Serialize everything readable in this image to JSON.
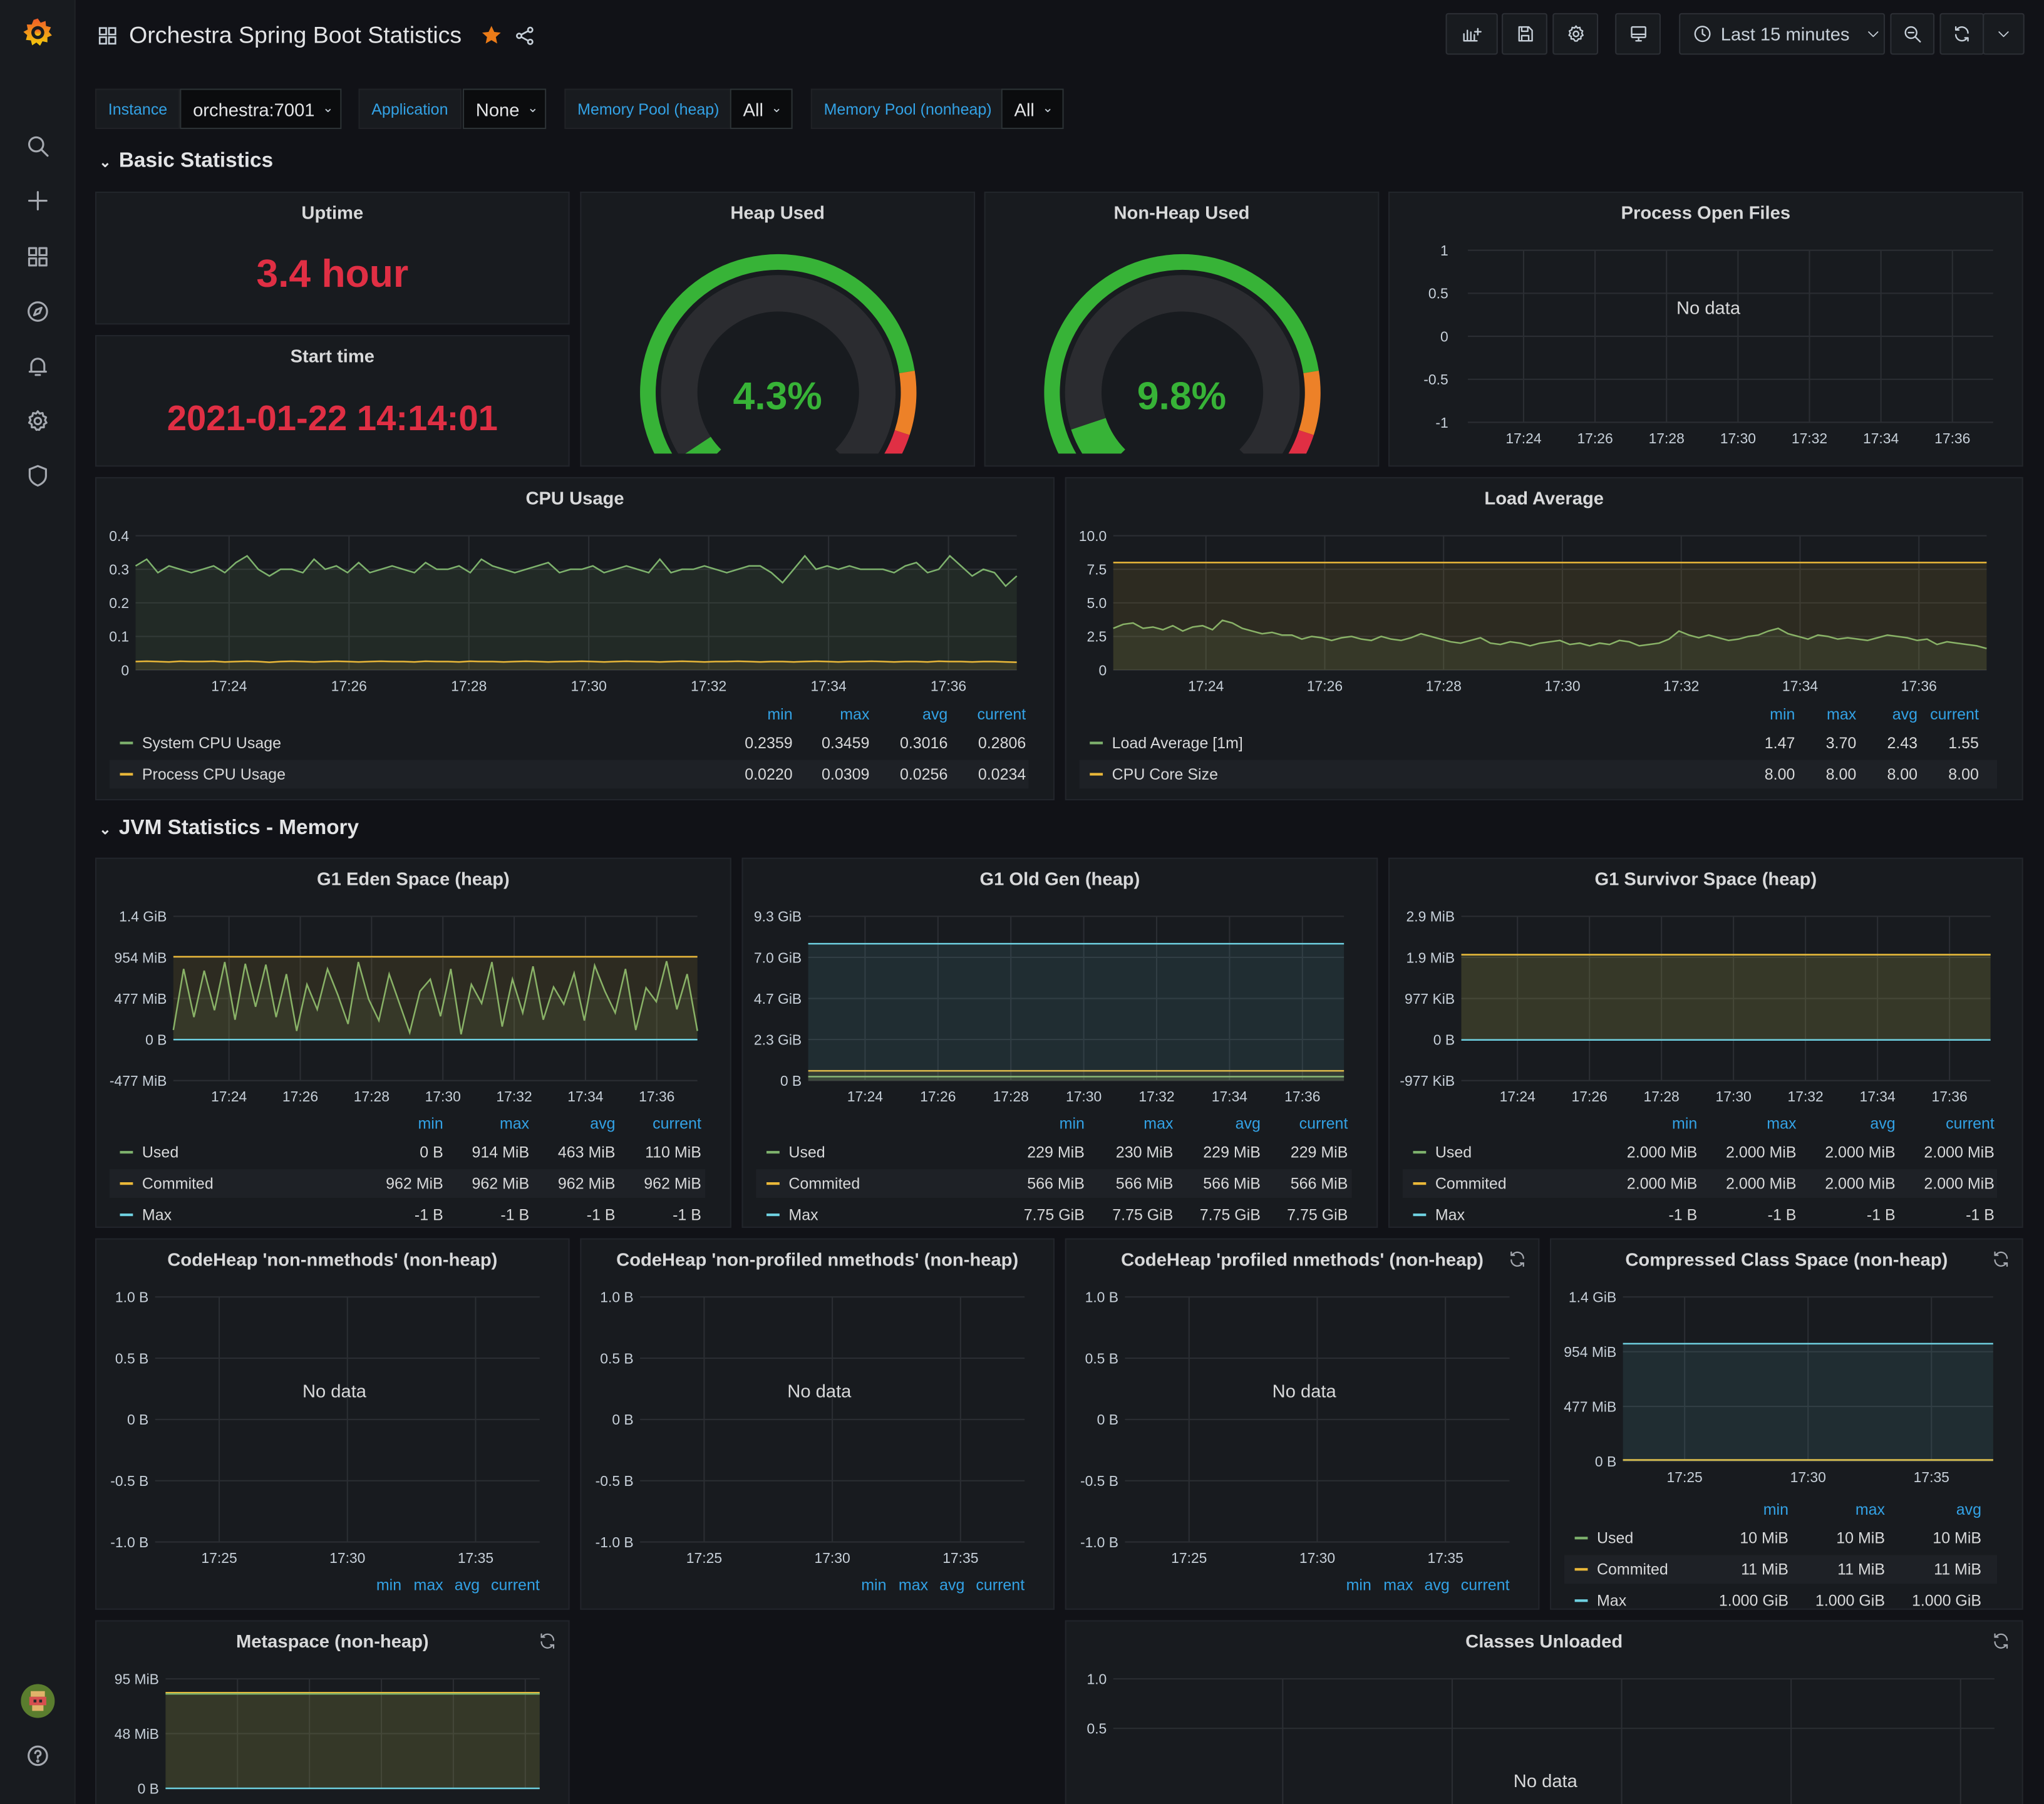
{
  "dashboard": {
    "title": "Orchestra Spring Boot Statistics",
    "time_range_label": "Last 15 minutes"
  },
  "variables": [
    {
      "label": "Instance",
      "value": "orchestra:7001"
    },
    {
      "label": "Application",
      "value": "None"
    },
    {
      "label": "Memory Pool (heap)",
      "value": "All"
    },
    {
      "label": "Memory Pool (nonheap)",
      "value": "All"
    }
  ],
  "rows": {
    "basic": "Basic Statistics",
    "jvm_memory": "JVM Statistics - Memory"
  },
  "panels": {
    "uptime": {
      "title": "Uptime",
      "value": "3.4 hour"
    },
    "start_time": {
      "title": "Start time",
      "value": "2021-01-22 14:14:01"
    },
    "heap_used": {
      "title": "Heap Used",
      "value": "4.3%",
      "fraction": 0.043
    },
    "nonheap_used": {
      "title": "Non-Heap Used",
      "value": "9.8%",
      "fraction": 0.098
    },
    "open_files": {
      "title": "Process Open Files",
      "nodata": "No data"
    },
    "cpu": {
      "title": "CPU Usage"
    },
    "load": {
      "title": "Load Average"
    },
    "eden": {
      "title": "G1 Eden Space (heap)"
    },
    "oldgen": {
      "title": "G1 Old Gen (heap)"
    },
    "survivor": {
      "title": "G1 Survivor Space (heap)"
    },
    "ch_nonnm": {
      "title": "CodeHeap 'non-nmethods' (non-heap)",
      "nodata": "No data"
    },
    "ch_nonprof": {
      "title": "CodeHeap 'non-profiled nmethods' (non-heap)",
      "nodata": "No data"
    },
    "ch_prof": {
      "title": "CodeHeap 'profiled nmethods' (non-heap)",
      "nodata": "No data"
    },
    "ccs": {
      "title": "Compressed Class Space (non-heap)"
    },
    "metaspace": {
      "title": "Metaspace (non-heap)"
    },
    "classes_unloaded": {
      "title": "Classes Unloaded",
      "nodata": "No data"
    }
  },
  "legend_headers": {
    "min": "min",
    "max": "max",
    "avg": "avg",
    "current": "current"
  },
  "legends": {
    "cpu": [
      {
        "name": "System CPU Usage",
        "min": "0.2359",
        "max": "0.3459",
        "avg": "0.3016",
        "current": "0.2806"
      },
      {
        "name": "Process CPU Usage",
        "min": "0.0220",
        "max": "0.0309",
        "avg": "0.0256",
        "current": "0.0234"
      }
    ],
    "load": [
      {
        "name": "Load Average [1m]",
        "min": "1.47",
        "max": "3.70",
        "avg": "2.43",
        "current": "1.55"
      },
      {
        "name": "CPU Core Size",
        "min": "8.00",
        "max": "8.00",
        "avg": "8.00",
        "current": "8.00"
      }
    ],
    "eden": [
      {
        "name": "Used",
        "min": "0 B",
        "max": "914 MiB",
        "avg": "463 MiB",
        "current": "110 MiB"
      },
      {
        "name": "Commited",
        "min": "962 MiB",
        "max": "962 MiB",
        "avg": "962 MiB",
        "current": "962 MiB"
      },
      {
        "name": "Max",
        "min": "-1 B",
        "max": "-1 B",
        "avg": "-1 B",
        "current": "-1 B"
      }
    ],
    "oldgen": [
      {
        "name": "Used",
        "min": "229 MiB",
        "max": "230 MiB",
        "avg": "229 MiB",
        "current": "229 MiB"
      },
      {
        "name": "Commited",
        "min": "566 MiB",
        "max": "566 MiB",
        "avg": "566 MiB",
        "current": "566 MiB"
      },
      {
        "name": "Max",
        "min": "7.75 GiB",
        "max": "7.75 GiB",
        "avg": "7.75 GiB",
        "current": "7.75 GiB"
      }
    ],
    "survivor": [
      {
        "name": "Used",
        "min": "2.000 MiB",
        "max": "2.000 MiB",
        "avg": "2.000 MiB",
        "current": "2.000 MiB"
      },
      {
        "name": "Commited",
        "min": "2.000 MiB",
        "max": "2.000 MiB",
        "avg": "2.000 MiB",
        "current": "2.000 MiB"
      },
      {
        "name": "Max",
        "min": "-1 B",
        "max": "-1 B",
        "avg": "-1 B",
        "current": "-1 B"
      }
    ],
    "ccs": [
      {
        "name": "Used",
        "min": "10 MiB",
        "max": "10 MiB",
        "avg": "10 MiB"
      },
      {
        "name": "Commited",
        "min": "11 MiB",
        "max": "11 MiB",
        "avg": "11 MiB"
      },
      {
        "name": "Max",
        "min": "1.000 GiB",
        "max": "1.000 GiB",
        "avg": "1.000 GiB"
      }
    ]
  },
  "chart_data": [
    {
      "panel": "open_files",
      "type": "line",
      "title": "Process Open Files",
      "yticks": [
        "1",
        "0.5",
        "0",
        "-0.5",
        "-1"
      ],
      "xticks": [
        "17:24",
        "17:26",
        "17:28",
        "17:30",
        "17:32",
        "17:34",
        "17:36"
      ],
      "ylim": [
        -1,
        1
      ],
      "series": []
    },
    {
      "panel": "cpu",
      "type": "area",
      "title": "CPU Usage",
      "yticks": [
        "0.4",
        "0.3",
        "0.2",
        "0.1",
        "0"
      ],
      "ylim": [
        0,
        0.4
      ],
      "xticks": [
        "17:24",
        "17:26",
        "17:28",
        "17:30",
        "17:32",
        "17:34",
        "17:36"
      ],
      "series": [
        {
          "name": "System CPU Usage",
          "color": "#7eb26d",
          "values": [
            0.31,
            0.33,
            0.29,
            0.31,
            0.3,
            0.29,
            0.3,
            0.31,
            0.29,
            0.32,
            0.34,
            0.3,
            0.28,
            0.3,
            0.3,
            0.29,
            0.33,
            0.3,
            0.31,
            0.29,
            0.32,
            0.29,
            0.3,
            0.31,
            0.3,
            0.29,
            0.32,
            0.3,
            0.3,
            0.31,
            0.29,
            0.33,
            0.31,
            0.3,
            0.29,
            0.3,
            0.31,
            0.32,
            0.29,
            0.3,
            0.3,
            0.31,
            0.29,
            0.3,
            0.31,
            0.3,
            0.29,
            0.33,
            0.29,
            0.3,
            0.3,
            0.31,
            0.3,
            0.29,
            0.3,
            0.31,
            0.31,
            0.29,
            0.26,
            0.3,
            0.34,
            0.3,
            0.31,
            0.3,
            0.31,
            0.3,
            0.3,
            0.3,
            0.29,
            0.31,
            0.32,
            0.29,
            0.3,
            0.34,
            0.31,
            0.28,
            0.3,
            0.29,
            0.25,
            0.28
          ]
        },
        {
          "name": "Process CPU Usage",
          "color": "#eab839",
          "values": [
            0.025,
            0.026,
            0.025,
            0.024,
            0.026,
            0.025,
            0.025,
            0.026,
            0.024,
            0.025,
            0.026,
            0.025,
            0.023,
            0.025,
            0.026,
            0.025,
            0.024,
            0.025,
            0.026,
            0.025,
            0.024,
            0.025,
            0.026,
            0.025,
            0.025,
            0.024,
            0.026,
            0.025,
            0.025,
            0.024,
            0.026,
            0.025,
            0.025,
            0.024,
            0.025,
            0.026,
            0.025,
            0.024,
            0.025,
            0.025,
            0.026,
            0.025,
            0.024,
            0.025,
            0.026,
            0.025,
            0.025,
            0.024,
            0.025,
            0.026,
            0.025,
            0.024,
            0.025,
            0.025,
            0.026,
            0.025,
            0.024,
            0.025,
            0.025,
            0.024,
            0.025,
            0.026,
            0.025,
            0.024,
            0.025,
            0.025,
            0.026,
            0.025,
            0.024,
            0.025,
            0.025,
            0.024,
            0.026,
            0.025,
            0.025,
            0.024,
            0.025,
            0.025,
            0.024,
            0.023
          ]
        }
      ]
    },
    {
      "panel": "load",
      "type": "area",
      "title": "Load Average",
      "yticks": [
        "10.0",
        "7.5",
        "5.0",
        "2.5",
        "0"
      ],
      "ylim": [
        0,
        10
      ],
      "xticks": [
        "17:24",
        "17:26",
        "17:28",
        "17:30",
        "17:32",
        "17:34",
        "17:36"
      ],
      "series": [
        {
          "name": "Load Average [1m]",
          "color": "#7eb26d",
          "values": [
            3.1,
            3.4,
            3.5,
            3.1,
            3.2,
            3.0,
            3.3,
            2.9,
            3.2,
            3.3,
            3.0,
            3.7,
            3.5,
            3.1,
            2.9,
            2.7,
            2.8,
            2.6,
            2.6,
            2.3,
            2.5,
            2.4,
            2.2,
            2.4,
            2.5,
            2.3,
            2.2,
            2.5,
            2.3,
            2.2,
            2.4,
            2.7,
            2.5,
            2.3,
            2.1,
            2.0,
            2.2,
            2.4,
            2.0,
            1.9,
            2.1,
            2.0,
            1.8,
            2.0,
            2.1,
            2.2,
            1.9,
            2.0,
            1.8,
            2.0,
            1.9,
            2.2,
            2.1,
            1.8,
            1.9,
            2.0,
            2.3,
            2.9,
            2.6,
            2.4,
            2.6,
            2.4,
            2.2,
            2.3,
            2.5,
            2.6,
            2.9,
            3.1,
            2.7,
            2.5,
            2.3,
            2.6,
            2.5,
            2.3,
            2.4,
            2.3,
            2.2,
            2.4,
            2.6,
            2.5,
            2.4,
            2.2,
            2.3,
            1.9,
            2.1,
            2.0,
            1.9,
            1.8,
            1.6
          ]
        },
        {
          "name": "CPU Core Size",
          "color": "#eab839",
          "values": [
            8,
            8
          ]
        }
      ]
    },
    {
      "panel": "eden",
      "type": "area",
      "title": "G1 Eden Space (heap)",
      "yticks": [
        "1.4 GiB",
        "954 MiB",
        "477 MiB",
        "0 B",
        "-477 MiB"
      ],
      "ylim": [
        -477,
        1431
      ],
      "xticks": [
        "17:24",
        "17:26",
        "17:28",
        "17:30",
        "17:32",
        "17:34",
        "17:36"
      ],
      "series": [
        {
          "name": "Used",
          "color": "#7eb26d",
          "values": [
            110,
            820,
            260,
            800,
            340,
            900,
            230,
            880,
            380,
            870,
            260,
            760,
            100,
            640,
            350,
            820,
            520,
            180,
            900,
            470,
            220,
            760,
            420,
            80,
            560,
            700,
            270,
            820,
            60,
            640,
            420,
            900,
            150,
            700,
            310,
            850,
            230,
            610,
            410,
            770,
            220,
            860,
            560,
            310,
            820,
            110,
            600,
            440,
            910,
            350,
            760,
            100
          ]
        },
        {
          "name": "Commited",
          "color": "#eab839",
          "values": [
            962,
            962
          ]
        },
        {
          "name": "Max",
          "color": "#6ed0e0",
          "values": [
            -1,
            -1
          ]
        }
      ]
    },
    {
      "panel": "oldgen",
      "type": "area",
      "title": "G1 Old Gen (heap)",
      "yticks": [
        "9.3 GiB",
        "7.0 GiB",
        "4.7 GiB",
        "2.3 GiB",
        "0 B"
      ],
      "ylim": [
        0,
        9.3
      ],
      "xticks": [
        "17:24",
        "17:26",
        "17:28",
        "17:30",
        "17:32",
        "17:34",
        "17:36"
      ],
      "series": [
        {
          "name": "Used",
          "color": "#7eb26d",
          "values": [
            0.224,
            0.224
          ]
        },
        {
          "name": "Commited",
          "color": "#eab839",
          "values": [
            0.553,
            0.553
          ]
        },
        {
          "name": "Max",
          "color": "#6ed0e0",
          "values": [
            7.75,
            7.75
          ]
        }
      ]
    },
    {
      "panel": "survivor",
      "type": "area",
      "title": "G1 Survivor Space (heap)",
      "yticks": [
        "2.9 MiB",
        "1.9 MiB",
        "977 KiB",
        "0 B",
        "-977 KiB"
      ],
      "ylim": [
        -0.954,
        2.9
      ],
      "xticks": [
        "17:24",
        "17:26",
        "17:28",
        "17:30",
        "17:32",
        "17:34",
        "17:36"
      ],
      "series": [
        {
          "name": "Used",
          "color": "#7eb26d",
          "values": [
            2,
            2
          ]
        },
        {
          "name": "Commited",
          "color": "#eab839",
          "values": [
            2,
            2
          ]
        },
        {
          "name": "Max",
          "color": "#6ed0e0",
          "values": [
            0,
            0
          ]
        }
      ]
    },
    {
      "panel": "ch_nonnm",
      "type": "line",
      "yticks": [
        "1.0 B",
        "0.5 B",
        "0 B",
        "-0.5 B",
        "-1.0 B"
      ],
      "ylim": [
        -1,
        1
      ],
      "xticks": [
        "17:25",
        "17:30",
        "17:35"
      ],
      "series": []
    },
    {
      "panel": "ch_nonprof",
      "type": "line",
      "yticks": [
        "1.0 B",
        "0.5 B",
        "0 B",
        "-0.5 B",
        "-1.0 B"
      ],
      "ylim": [
        -1,
        1
      ],
      "xticks": [
        "17:25",
        "17:30",
        "17:35"
      ],
      "series": []
    },
    {
      "panel": "ch_prof",
      "type": "line",
      "yticks": [
        "1.0 B",
        "0.5 B",
        "0 B",
        "-0.5 B",
        "-1.0 B"
      ],
      "ylim": [
        -1,
        1
      ],
      "xticks": [
        "17:25",
        "17:30",
        "17:35"
      ],
      "series": []
    },
    {
      "panel": "ccs",
      "type": "area",
      "title": "Compressed Class Space (non-heap)",
      "yticks": [
        "1.4 GiB",
        "954 MiB",
        "477 MiB",
        "0 B"
      ],
      "ylim": [
        0,
        1431
      ],
      "xticks": [
        "17:25",
        "17:30",
        "17:35"
      ],
      "series": [
        {
          "name": "Used",
          "color": "#7eb26d",
          "values": [
            10,
            10
          ]
        },
        {
          "name": "Commited",
          "color": "#eab839",
          "values": [
            11,
            11
          ]
        },
        {
          "name": "Max",
          "color": "#6ed0e0",
          "values": [
            1024,
            1024
          ]
        }
      ]
    },
    {
      "panel": "metaspace",
      "type": "area",
      "title": "Metaspace (non-heap)",
      "yticks": [
        "95 MiB",
        "48 MiB",
        "0 B"
      ],
      "ylim": [
        0,
        95
      ],
      "series": [
        {
          "name": "Commited",
          "color": "#eab839",
          "values": [
            83,
            83
          ]
        },
        {
          "name": "Used",
          "color": "#7eb26d",
          "values": [
            82,
            82
          ]
        },
        {
          "name": "Max",
          "color": "#6ed0e0",
          "values": [
            0,
            0
          ]
        }
      ]
    },
    {
      "panel": "classes_unloaded",
      "type": "line",
      "yticks": [
        "1.0",
        "0.5"
      ],
      "ylim": [
        0,
        1
      ],
      "series": []
    }
  ]
}
